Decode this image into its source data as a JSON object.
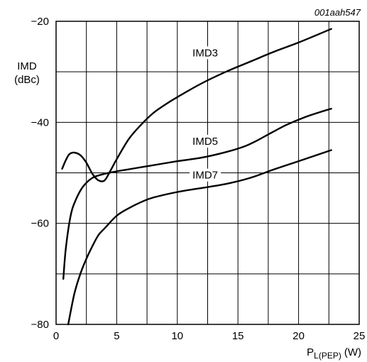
{
  "figure_code": "001aah547",
  "chart_data": {
    "type": "line",
    "title": "",
    "xlabel": {
      "main": "P",
      "sub": "L(PEP)",
      "unit": "(W)"
    },
    "ylabel": {
      "line1": "IMD",
      "line2": "(dBc)"
    },
    "xlim": [
      0,
      25
    ],
    "ylim": [
      -80,
      -20
    ],
    "x_ticks": [
      0,
      5,
      10,
      15,
      20,
      25
    ],
    "x_tick_labels": [
      "0",
      "5",
      "10",
      "15",
      "20",
      "25"
    ],
    "y_ticks": [
      -80,
      -60,
      -40,
      -20
    ],
    "y_tick_labels": [
      "−80",
      "−60",
      "−40",
      "−20"
    ],
    "grid": true,
    "series": [
      {
        "name": "IMD3",
        "x": [
          0.5,
          0.8,
          1.1,
          1.5,
          2.0,
          2.5,
          3.0,
          3.5,
          4.0,
          4.5,
          5.0,
          6.0,
          7.0,
          8.0,
          9.0,
          10.0,
          12.0,
          14.0,
          16.0,
          18.0,
          20.0,
          22.7
        ],
        "y": [
          -49.2,
          -47.5,
          -46.3,
          -46.0,
          -46.5,
          -48.0,
          -50.2,
          -51.5,
          -51.5,
          -49.5,
          -47.3,
          -43.3,
          -40.5,
          -38.2,
          -36.5,
          -35.0,
          -32.3,
          -30.0,
          -28.0,
          -26.0,
          -24.2,
          -21.5
        ]
      },
      {
        "name": "IMD5",
        "x": [
          0.6,
          0.8,
          1.2,
          1.6,
          2.2,
          3.0,
          4.0,
          5.0,
          6.0,
          8.0,
          10.0,
          12.0,
          14.0,
          15.5,
          16.5,
          17.5,
          19.0,
          20.5,
          22.0,
          22.7
        ],
        "y": [
          -71.0,
          -65.0,
          -58.5,
          -55.5,
          -52.8,
          -51.0,
          -50.2,
          -49.7,
          -49.3,
          -48.5,
          -47.7,
          -47.0,
          -45.9,
          -44.8,
          -43.7,
          -42.4,
          -40.5,
          -39.0,
          -37.8,
          -37.3
        ]
      },
      {
        "name": "IMD7",
        "x": [
          1.0,
          1.5,
          2.0,
          2.5,
          3.0,
          3.5,
          4.0,
          5.0,
          6.0,
          7.0,
          8.0,
          10.0,
          12.0,
          14.0,
          16.0,
          18.0,
          20.0,
          22.7
        ],
        "y": [
          -80.0,
          -74.0,
          -70.0,
          -67.0,
          -64.5,
          -62.3,
          -61.0,
          -58.5,
          -57.0,
          -55.8,
          -54.9,
          -53.8,
          -53.0,
          -52.2,
          -51.0,
          -49.3,
          -47.7,
          -45.5
        ]
      }
    ],
    "annotations": [
      {
        "text": "IMD3",
        "x": 12.3,
        "y": -26.8
      },
      {
        "text": "IMD5",
        "x": 12.3,
        "y": -44.3
      },
      {
        "text": "IMD7",
        "x": 12.3,
        "y": -51.0
      }
    ]
  }
}
